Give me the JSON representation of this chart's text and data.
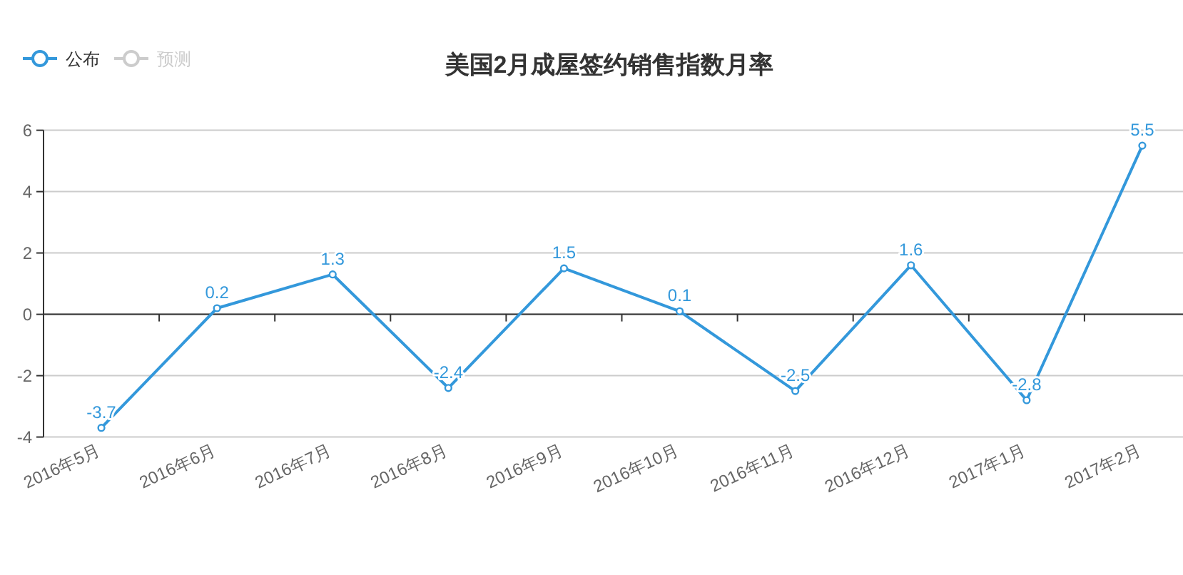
{
  "chart_data": {
    "type": "line",
    "title": "美国2月成屋签约销售指数月率",
    "categories": [
      "2016年5月",
      "2016年6月",
      "2016年7月",
      "2016年8月",
      "2016年9月",
      "2016年10月",
      "2016年11月",
      "2016年12月",
      "2017年1月",
      "2017年2月"
    ],
    "series": [
      {
        "name": "公布",
        "color": "#3398db",
        "values": [
          -3.7,
          0.2,
          1.3,
          -2.4,
          1.5,
          0.1,
          -2.5,
          1.6,
          -2.8,
          5.5
        ]
      },
      {
        "name": "预测",
        "color": "#cccccc",
        "values": [
          null,
          null,
          null,
          null,
          null,
          null,
          null,
          null,
          null,
          null
        ]
      }
    ],
    "ylim": [
      -4,
      6
    ],
    "yticks": [
      -4,
      -2,
      0,
      2,
      4,
      6
    ],
    "grid": "y",
    "legend": "top left",
    "marker": "circle",
    "line_style": "solid",
    "data_labels": true
  }
}
